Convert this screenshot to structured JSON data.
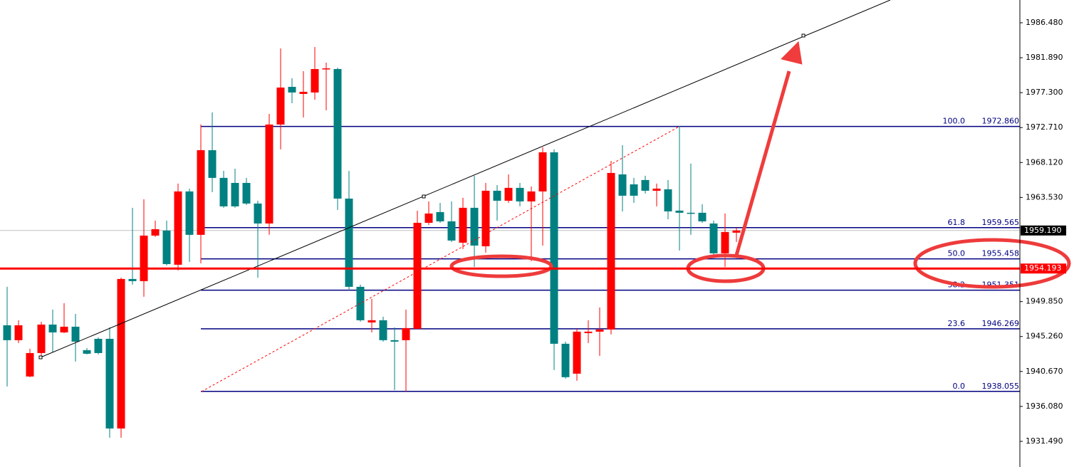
{
  "chart_data": {
    "type": "candlestick",
    "ylim": [
      1928.12,
      1989.47
    ],
    "yticks": [
      {
        "value": 1986.48,
        "label": "1986.480"
      },
      {
        "value": 1981.89,
        "label": "1981.890"
      },
      {
        "value": 1977.3,
        "label": "1977.300"
      },
      {
        "value": 1972.71,
        "label": "1972.710"
      },
      {
        "value": 1968.12,
        "label": "1968.120"
      },
      {
        "value": 1963.53,
        "label": "1963.530"
      },
      {
        "value": 1949.85,
        "label": "1949.850"
      },
      {
        "value": 1945.26,
        "label": "1945.260"
      },
      {
        "value": 1940.67,
        "label": "1940.670"
      },
      {
        "value": 1936.08,
        "label": "1936.080"
      },
      {
        "value": 1931.49,
        "label": "1931.490"
      }
    ],
    "up_color": "#ff0000",
    "down_color": "#008080",
    "open": [
      1946.74,
      1944.78,
      1940.01,
      1943.09,
      1946.83,
      1945.8,
      1946.55,
      1943.47,
      1944.96,
      1944.96,
      1933.18,
      1952.82,
      1952.54,
      1958.52,
      1959.18,
      1954.69,
      1964.32,
      1958.62,
      1969.74,
      1966.1,
      1965.44,
      1965.44,
      1962.73,
      1960.11,
      1973.11,
      1978.06,
      1977.13,
      1977.32,
      1980.4,
      1980.4,
      1963.38,
      1951.79,
      1947.11,
      1947.4,
      1944.78,
      1944.78,
      1946.27,
      1960.2,
      1961.61,
      1960.39,
      1957.59,
      1962.17,
      1957.12,
      1964.41,
      1963.1,
      1964.79,
      1963.01,
      1964.32,
      1969.46,
      1944.31,
      1940.38,
      1945.71,
      1945.9,
      1946.18,
      1966.56,
      1965.25,
      1965.82,
      1964.41,
      1964.6,
      1961.8,
      1961.52,
      1961.52,
      1960.11,
      1956.19,
      1958.9
    ],
    "high": [
      1951.79,
      1947.4,
      1943.66,
      1947.21,
      1948.8,
      1949.64,
      1948.24,
      1943.75,
      1945.15,
      1946.46,
      1953.0,
      1962.17,
      1963.29,
      1960.49,
      1960.49,
      1965.35,
      1964.69,
      1973.11,
      1974.7,
      1967.03,
      1967.31,
      1966.1,
      1963.1,
      1974.51,
      1983.11,
      1979.19,
      1980.12,
      1983.3,
      1981.24,
      1980.59,
      1967.03,
      1952.07,
      1950.2,
      1947.86,
      1946.46,
      1948.8,
      1961.8,
      1963.01,
      1962.82,
      1963.01,
      1963.48,
      1966.38,
      1965.44,
      1965.16,
      1966.56,
      1965.44,
      1964.97,
      1970.11,
      1969.84,
      1944.59,
      1946.27,
      1947.4,
      1949.08,
      1968.34,
      1970.4,
      1966.1,
      1966.38,
      1965.35,
      1965.82,
      1972.92,
      1967.97,
      1962.64,
      1960.49,
      1961.42,
      1959.55
    ],
    "low": [
      1938.7,
      1944.4,
      1939.92,
      1942.72,
      1943.19,
      1945.71,
      1941.97,
      1942.91,
      1942.91,
      1931.97,
      1931.97,
      1952.07,
      1950.48,
      1958.34,
      1954.6,
      1953.94,
      1955.06,
      1954.88,
      1964.23,
      1962.17,
      1962.17,
      1962.54,
      1953.0,
      1958.62,
      1969.84,
      1975.91,
      1974.04,
      1976.38,
      1974.98,
      1961.89,
      1951.32,
      1947.21,
      1945.8,
      1944.59,
      1938.23,
      1938.05,
      1946.27,
      1959.92,
      1960.2,
      1957.68,
      1956.75,
      1954.41,
      1956.28,
      1960.49,
      1962.82,
      1962.36,
      1955.16,
      1957.21,
      1940.85,
      1939.73,
      1939.45,
      1944.4,
      1942.72,
      1945.53,
      1961.7,
      1962.82,
      1964.04,
      1962.36,
      1960.67,
      1956.56,
      1958.62,
      1960.2,
      1956.0,
      1954.41,
      1957.68
    ],
    "close": [
      1944.78,
      1946.74,
      1943.09,
      1946.83,
      1945.8,
      1946.55,
      1944.59,
      1943.0,
      1943.09,
      1933.18,
      1952.82,
      1952.54,
      1958.52,
      1959.36,
      1954.78,
      1964.32,
      1958.62,
      1969.74,
      1966.1,
      1962.36,
      1962.36,
      1962.73,
      1960.11,
      1973.11,
      1977.97,
      1977.32,
      1977.41,
      1980.4,
      1980.49,
      1963.38,
      1951.79,
      1947.4,
      1947.4,
      1944.78,
      1944.59,
      1946.37,
      1960.2,
      1961.42,
      1960.39,
      1957.87,
      1962.17,
      1957.21,
      1964.41,
      1963.1,
      1964.79,
      1963.01,
      1964.32,
      1969.46,
      1944.31,
      1939.92,
      1945.9,
      1945.9,
      1946.18,
      1966.75,
      1963.76,
      1963.76,
      1964.41,
      1964.69,
      1961.7,
      1961.52,
      1961.42,
      1960.39,
      1956.19,
      1958.99,
      1959.19
    ],
    "fib_levels": [
      {
        "ratio": "100.0",
        "price": {
          "value": 1972.86,
          "label": "1972.860"
        }
      },
      {
        "ratio": "61.8",
        "price": {
          "value": 1959.565,
          "label": "1959.565"
        }
      },
      {
        "ratio": "50.0",
        "price": {
          "value": 1955.458,
          "label": "1955.458"
        }
      },
      {
        "ratio": "38.2",
        "price": {
          "value": 1951.351,
          "label": "1951.351"
        }
      },
      {
        "ratio": "23.6",
        "price": {
          "value": 1946.269,
          "label": "1946.269"
        }
      },
      {
        "ratio": "0.0",
        "price": {
          "value": 1938.055,
          "label": "1938.055"
        }
      }
    ],
    "current_price": {
      "value": 1959.19,
      "label": "1959.190"
    },
    "marked_price": {
      "value": 1954.193,
      "label": "1954.193"
    }
  }
}
